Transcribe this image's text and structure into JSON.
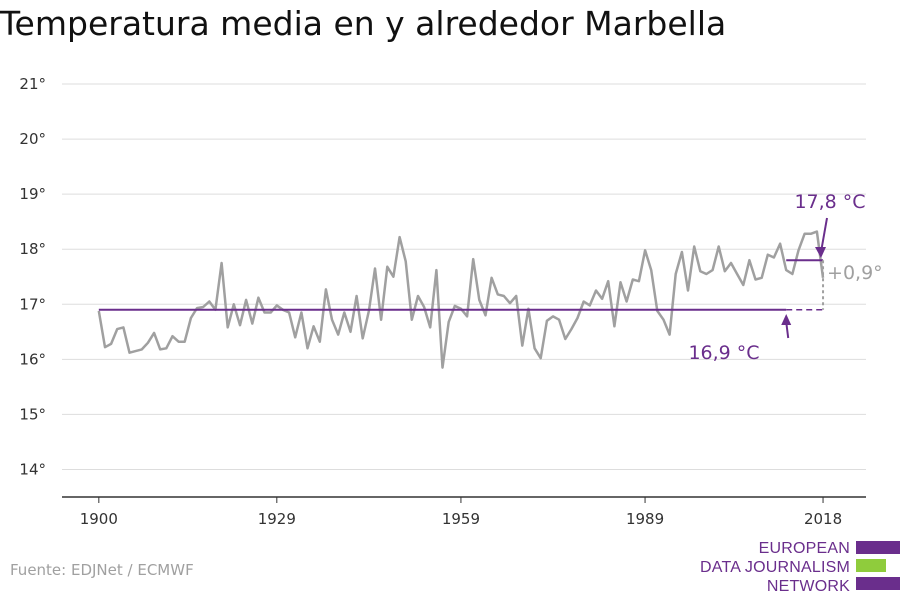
{
  "chart_data": {
    "type": "line",
    "title": "Temperatura media en y alrededor Marbella",
    "x_ticks": [
      "1900",
      "1929",
      "1959",
      "1989",
      "2018"
    ],
    "y_ticks": [
      "14°",
      "15°",
      "16°",
      "17°",
      "18°",
      "19°",
      "20°",
      "21°"
    ],
    "ylim": [
      13.5,
      21.4
    ],
    "xlim": [
      1894,
      2025
    ],
    "grid": true,
    "series": [
      {
        "x": [
          1900,
          1901,
          1902,
          1903,
          1904,
          1905,
          1906,
          1907,
          1908,
          1909,
          1910,
          1911,
          1912,
          1913,
          1914,
          1915,
          1916,
          1917,
          1918,
          1919,
          1920,
          1921,
          1922,
          1923,
          1924,
          1925,
          1926,
          1927,
          1928,
          1929,
          1930,
          1931,
          1932,
          1933,
          1934,
          1935,
          1936,
          1937,
          1938,
          1939,
          1940,
          1941,
          1942,
          1943,
          1944,
          1945,
          1946,
          1947,
          1948,
          1949,
          1950,
          1951,
          1952,
          1953,
          1954,
          1955,
          1956,
          1957,
          1958,
          1959,
          1960,
          1961,
          1962,
          1963,
          1964,
          1965,
          1966,
          1967,
          1968,
          1969,
          1970,
          1971,
          1972,
          1973,
          1974,
          1975,
          1976,
          1977,
          1978,
          1979,
          1980,
          1981,
          1982,
          1983,
          1984,
          1985,
          1986,
          1987,
          1988,
          1989,
          1990,
          1991,
          1992,
          1993,
          1994,
          1995,
          1996,
          1997,
          1998,
          1999,
          2000,
          2001,
          2002,
          2003,
          2004,
          2005,
          2006,
          2007,
          2008,
          2009,
          2010,
          2011,
          2012,
          2013,
          2014,
          2015,
          2016,
          2017,
          2018
        ],
        "y": [
          16.88,
          16.22,
          16.28,
          16.55,
          16.58,
          16.12,
          16.15,
          16.18,
          16.3,
          16.48,
          16.18,
          16.2,
          16.42,
          16.32,
          16.32,
          16.75,
          16.93,
          16.95,
          17.05,
          16.9,
          17.75,
          16.58,
          17.0,
          16.62,
          17.08,
          16.65,
          17.12,
          16.85,
          16.85,
          16.98,
          16.9,
          16.85,
          16.4,
          16.85,
          16.2,
          16.6,
          16.32,
          17.27,
          16.72,
          16.45,
          16.85,
          16.5,
          17.15,
          16.38,
          16.88,
          17.65,
          16.72,
          17.68,
          17.5,
          18.22,
          17.78,
          16.72,
          17.15,
          16.95,
          16.58,
          17.62,
          15.85,
          16.68,
          16.97,
          16.92,
          16.78,
          17.82,
          17.08,
          16.8,
          17.48,
          17.18,
          17.15,
          17.02,
          17.15,
          16.25,
          16.92,
          16.2,
          16.02,
          16.7,
          16.78,
          16.72,
          16.37,
          16.55,
          16.75,
          17.05,
          16.98,
          17.25,
          17.1,
          17.42,
          16.6,
          17.4,
          17.05,
          17.45,
          17.42,
          17.98,
          17.62,
          16.88,
          16.72,
          16.45,
          17.55,
          17.95,
          17.25,
          18.05,
          17.6,
          17.55,
          17.62,
          18.05,
          17.6,
          17.75,
          17.55,
          17.35,
          17.8,
          17.45,
          17.48,
          17.9,
          17.85,
          18.1,
          17.62,
          17.55,
          17.98,
          18.28,
          18.28,
          18.32,
          17.48
        ]
      }
    ],
    "reference_lines": [
      {
        "label": "16,9 °C",
        "y": 16.9,
        "x_solid": [
          1900,
          2012
        ],
        "x_dashed": [
          2012,
          2018
        ]
      },
      {
        "label": "17,8 °C",
        "y": 17.8,
        "x_solid": [
          2012,
          2018
        ]
      }
    ],
    "difference_label": "+0,9°",
    "colors": {
      "series": "#a0a0a0",
      "reference": "#6a2e8c",
      "grid": "#dddddd",
      "axis": "#333333",
      "logo_green": "#8fcc3c"
    },
    "source": "Fuente: EDJNet / ECMWF"
  },
  "logo": {
    "lines": [
      "EUROPEAN",
      "DATA JOURNALISM",
      "NETWORK"
    ]
  }
}
